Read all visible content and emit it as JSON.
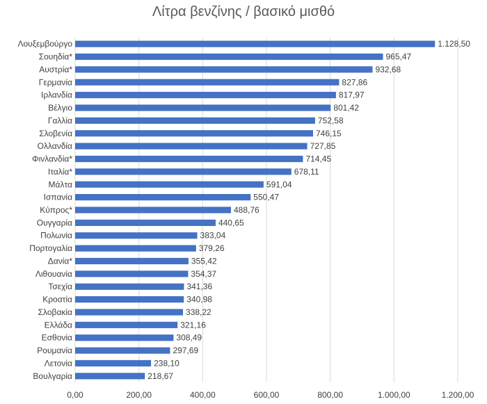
{
  "chart_data": {
    "type": "bar",
    "orientation": "horizontal",
    "title": "Λίτρα βενζίνης / βασικό μισθό",
    "xlim": [
      0,
      1200
    ],
    "x_ticks": [
      "0,00",
      "200,00",
      "400,00",
      "600,00",
      "800,00",
      "1.000,00",
      "1.200,00"
    ],
    "grid": true,
    "bar_color": "#4472c4",
    "categories": [
      "Λουξεμβούργο",
      "Σουηδία*",
      "Αυστρία*",
      "Γερμανία",
      "Ιρλανδία",
      "Βέλγιο",
      "Γαλλία",
      "Σλοβενία",
      "Ολλανδία",
      "Φινλανδία*",
      "Ιταλία*",
      "Μάλτα",
      "Ισπανία",
      "Κύπρος*",
      "Ουγγαρία",
      "Πολωνία",
      "Πορτογαλία",
      "Δανία*",
      "Λιθουανία",
      "Τσεχία",
      "Κροατία",
      "Σλοβακία",
      "Ελλάδα",
      "Εσθονία",
      "Ρουμανία",
      "Λετονία",
      "Βουλγαρία"
    ],
    "values": [
      1128.5,
      965.47,
      932.68,
      827.86,
      817.97,
      801.42,
      752.58,
      746.15,
      727.85,
      714.45,
      678.11,
      591.04,
      550.47,
      488.76,
      440.65,
      383.04,
      379.26,
      355.42,
      354.37,
      341.36,
      340.98,
      338.22,
      321.16,
      308.49,
      297.69,
      238.1,
      218.67
    ],
    "value_labels": [
      "1.128,50",
      "965,47",
      "932,68",
      "827,86",
      "817,97",
      "801,42",
      "752,58",
      "746,15",
      "727,85",
      "714,45",
      "678,11",
      "591,04",
      "550,47",
      "488,76",
      "440,65",
      "383,04",
      "379,26",
      "355,42",
      "354,37",
      "341,36",
      "340,98",
      "338,22",
      "321,16",
      "308,49",
      "297,69",
      "238,10",
      "218,67"
    ]
  }
}
